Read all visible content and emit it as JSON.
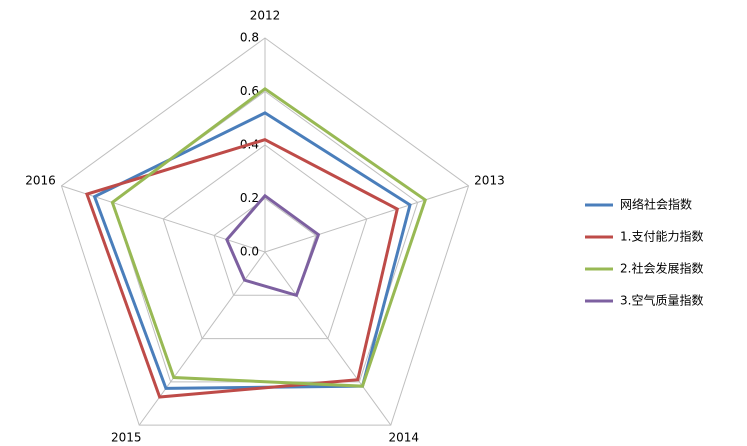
{
  "chart_data": {
    "type": "radar",
    "categories": [
      "2012",
      "2013",
      "2014",
      "2015",
      "2016"
    ],
    "series": [
      {
        "name": "网络社会指数",
        "color": "#4a7ebb",
        "values": [
          0.52,
          0.57,
          0.62,
          0.63,
          0.67
        ]
      },
      {
        "name": "1.支付能力指数",
        "color": "#be4b48",
        "values": [
          0.42,
          0.52,
          0.59,
          0.67,
          0.7
        ]
      },
      {
        "name": "2.社会发展指数",
        "color": "#98b954",
        "values": [
          0.61,
          0.63,
          0.62,
          0.58,
          0.6
        ]
      },
      {
        "name": "3.空气质量指数",
        "color": "#7d60a0",
        "values": [
          0.21,
          0.21,
          0.2,
          0.13,
          0.15
        ]
      }
    ],
    "ylim": [
      0,
      0.8
    ],
    "yticks": [
      {
        "value": 0,
        "label": "0.0"
      },
      0.2,
      0.4,
      0.6,
      0.8
    ],
    "grid": true,
    "legend": "right"
  }
}
